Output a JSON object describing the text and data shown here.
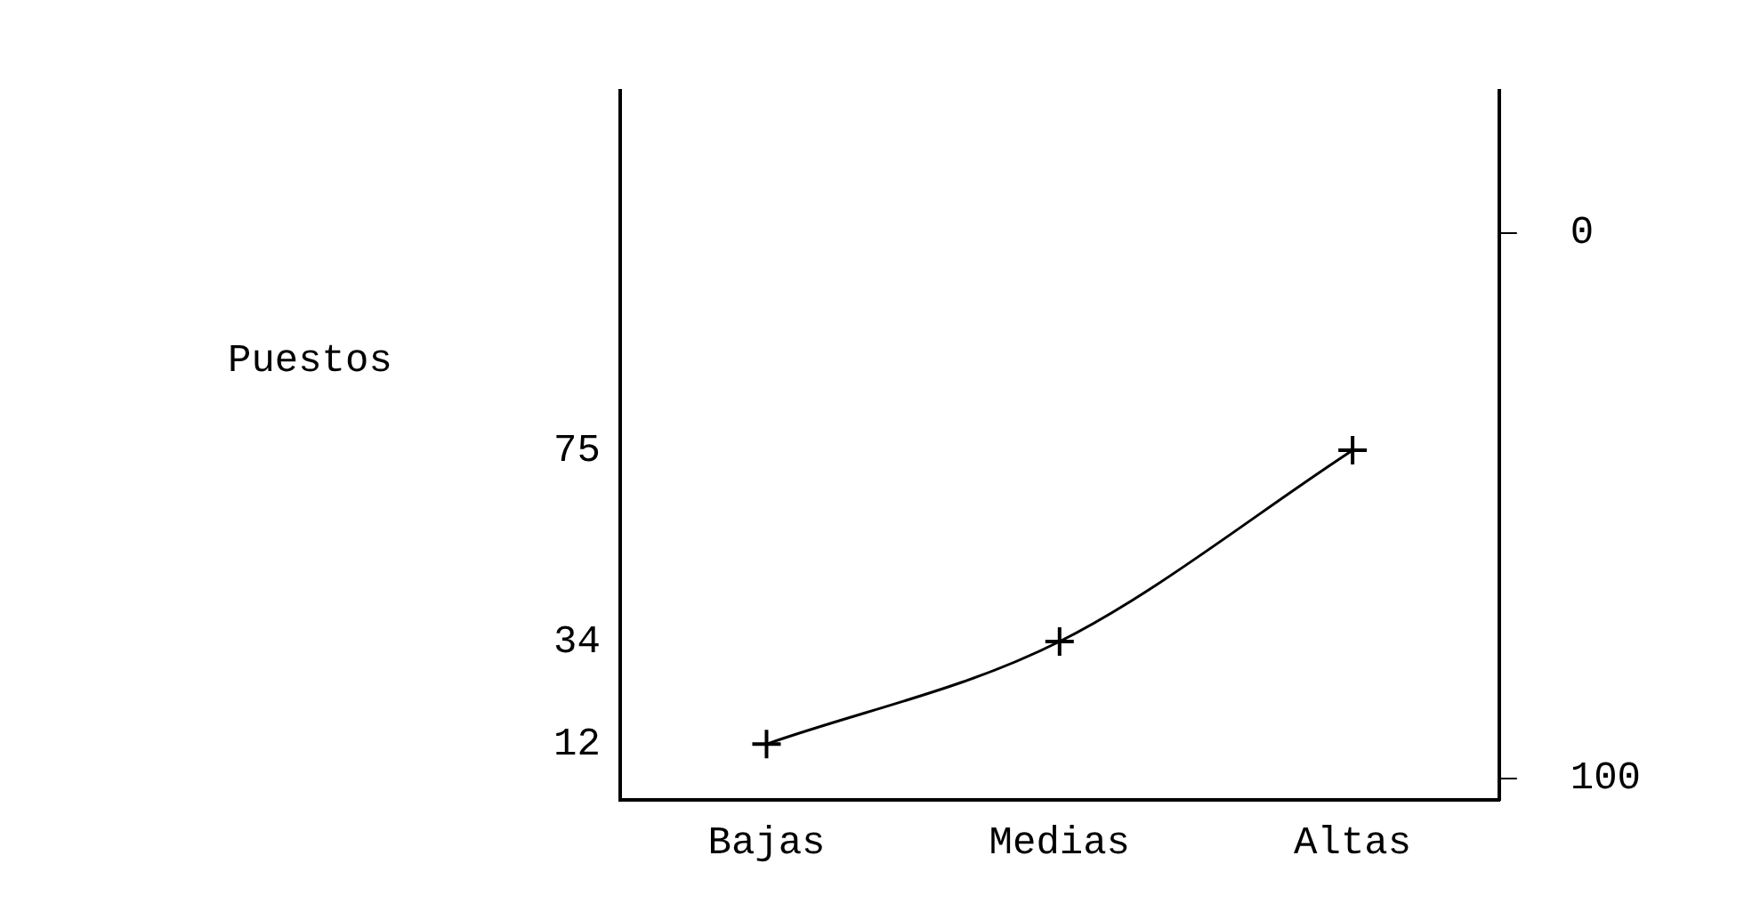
{
  "chart_data": {
    "type": "line",
    "ylabel": "Puestos",
    "categories": [
      "Bajas",
      "Medias",
      "Altas"
    ],
    "series": [
      {
        "color": "#000000",
        "values": [
          12,
          34,
          75
        ]
      }
    ],
    "ylim": [
      0,
      152
    ],
    "yticks": [
      12,
      34,
      75
    ],
    "y2lim": [
      104,
      -26
    ],
    "y2ticks": [
      0,
      100
    ],
    "grid": false,
    "legend": false,
    "marker": "cross",
    "line_style": "solid"
  }
}
